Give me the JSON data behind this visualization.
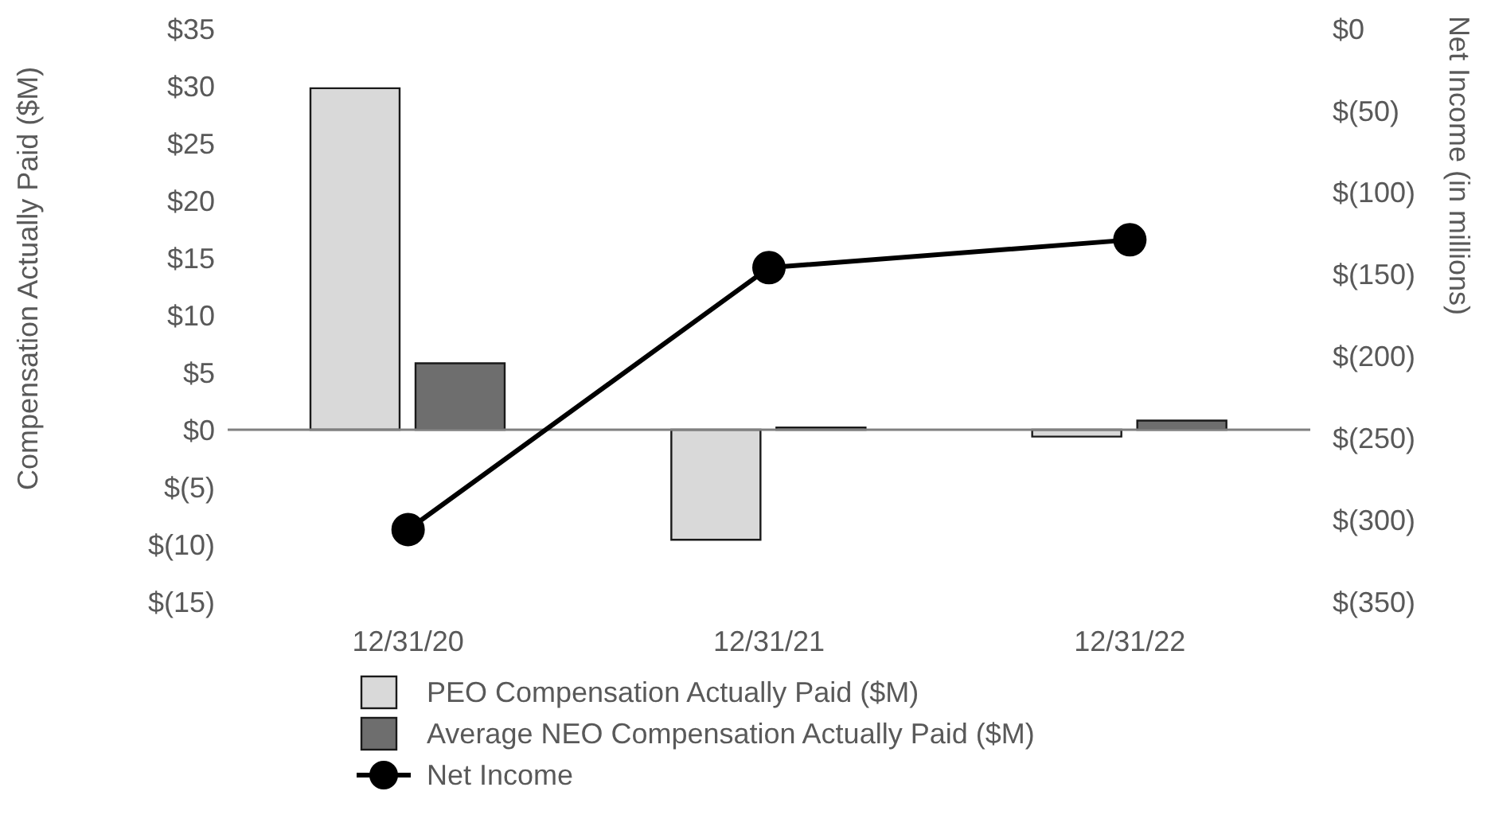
{
  "chart_data": {
    "type": "bar",
    "categories": [
      "12/31/20",
      "12/31/21",
      "12/31/22"
    ],
    "series": [
      {
        "name": "PEO Compensation Actually Paid ($M)",
        "color": "#d9d9d9",
        "values": [
          29.8,
          -9.6,
          -0.6
        ]
      },
      {
        "name": "Average NEO Compensation Actually Paid ($M)",
        "color": "#6e6e6e",
        "values": [
          5.8,
          0.2,
          0.8
        ]
      },
      {
        "name": "Net Income",
        "type": "line",
        "axis": "y2",
        "color": "#000000",
        "values": [
          -306,
          -146,
          -129
        ],
        "marker": "circle",
        "line_style": "solid"
      }
    ],
    "ylabel": "Compensation Actually Paid ($M)",
    "y2label": "Net Income (in millions)",
    "ylim": [
      -15,
      35
    ],
    "yticks": [
      {
        "value": 35,
        "label": "$35"
      },
      {
        "value": 30,
        "label": "$30"
      },
      {
        "value": 25,
        "label": "$25"
      },
      {
        "value": 20,
        "label": "$20"
      },
      {
        "value": 15,
        "label": "$15"
      },
      {
        "value": 10,
        "label": "$10"
      },
      {
        "value": 5,
        "label": "$5"
      },
      {
        "value": 0,
        "label": "$0"
      },
      {
        "value": -5,
        "label": "$(5)"
      },
      {
        "value": -10,
        "label": "$(10)"
      },
      {
        "value": -15,
        "label": "$(15)"
      }
    ],
    "y2lim": [
      -350,
      0
    ],
    "y2ticks": [
      {
        "value": 0,
        "label": "$0"
      },
      {
        "value": -50,
        "label": "$(50)"
      },
      {
        "value": -100,
        "label": "$(100)"
      },
      {
        "value": -150,
        "label": "$(150)"
      },
      {
        "value": -200,
        "label": "$(200)"
      },
      {
        "value": -250,
        "label": "$(250)"
      },
      {
        "value": -300,
        "label": "$(300)"
      },
      {
        "value": -350,
        "label": "$(350)"
      }
    ],
    "ref_lines": [
      {
        "axis": "y",
        "value": 0,
        "color": "#808080"
      }
    ],
    "grid": false,
    "legend": "bottom"
  }
}
